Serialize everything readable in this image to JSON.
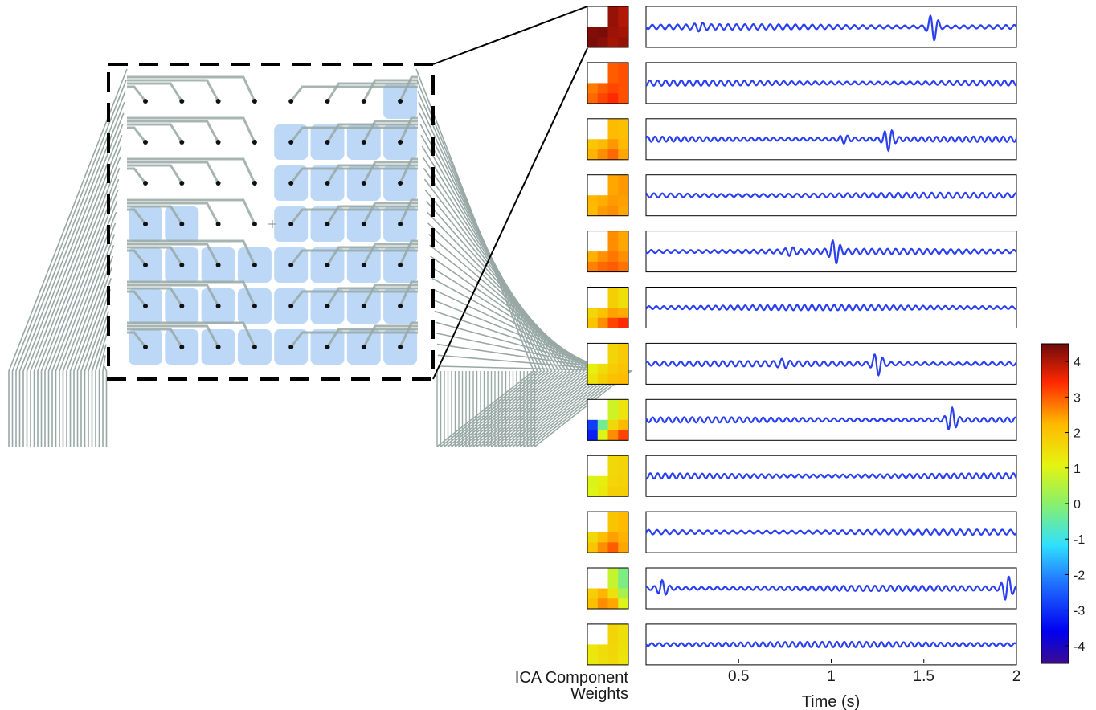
{
  "labels": {
    "weights_line1": "ICA Component",
    "weights_line2": "Weights",
    "x_axis": "Time (s)"
  },
  "x_axis": {
    "range": [
      0,
      2
    ],
    "ticks": [
      0.5,
      1,
      1.5,
      2
    ],
    "tick_labels": [
      "0.5",
      "1",
      "1.5",
      "2"
    ]
  },
  "colorbar": {
    "range": [
      -4.5,
      4.5
    ],
    "ticks": [
      4,
      3,
      2,
      1,
      0,
      -1,
      -2,
      -3,
      -4
    ],
    "tick_labels": [
      "4",
      "3",
      "2",
      "1",
      "0",
      "-1",
      "-2",
      "-3",
      "-4"
    ],
    "colormap": "jet"
  },
  "array": {
    "rows": 7,
    "cols": 8,
    "highlighted_pads": [
      [
        0,
        7
      ],
      [
        1,
        4
      ],
      [
        1,
        5
      ],
      [
        1,
        6
      ],
      [
        1,
        7
      ],
      [
        2,
        4
      ],
      [
        2,
        5
      ],
      [
        2,
        6
      ],
      [
        2,
        7
      ],
      [
        3,
        0
      ],
      [
        3,
        1
      ],
      [
        3,
        4
      ],
      [
        3,
        5
      ],
      [
        3,
        6
      ],
      [
        3,
        7
      ],
      [
        4,
        0
      ],
      [
        4,
        1
      ],
      [
        4,
        2
      ],
      [
        4,
        3
      ],
      [
        4,
        4
      ],
      [
        4,
        5
      ],
      [
        4,
        6
      ],
      [
        4,
        7
      ],
      [
        5,
        0
      ],
      [
        5,
        1
      ],
      [
        5,
        2
      ],
      [
        5,
        3
      ],
      [
        5,
        4
      ],
      [
        5,
        5
      ],
      [
        5,
        6
      ],
      [
        5,
        7
      ],
      [
        6,
        0
      ],
      [
        6,
        1
      ],
      [
        6,
        2
      ],
      [
        6,
        3
      ],
      [
        6,
        4
      ],
      [
        6,
        5
      ],
      [
        6,
        6
      ],
      [
        6,
        7
      ]
    ],
    "pad_color": "#bcd8f6",
    "wire_color": "#98a8a4"
  },
  "components": [
    {
      "weights": [
        [
          4.3,
          4.5,
          4.2,
          4.0
        ],
        [
          4.4,
          4.3,
          4.1,
          4.2
        ]
      ],
      "bursts": [
        [
          0.29,
          0.5
        ],
        [
          1.55,
          3.0
        ]
      ]
    },
    {
      "weights": [
        [
          2.6,
          2.8,
          3.0,
          3.1
        ],
        [
          2.9,
          3.2,
          3.4,
          3.1
        ]
      ],
      "bursts": []
    },
    {
      "weights": [
        [
          1.7,
          1.9,
          2.2,
          2.1
        ],
        [
          2.3,
          2.6,
          2.9,
          2.4
        ]
      ],
      "bursts": [
        [
          1.07,
          0.7
        ],
        [
          1.31,
          2.3
        ]
      ]
    },
    {
      "weights": [
        [
          2.3,
          2.2,
          2.4,
          2.5
        ],
        [
          2.2,
          2.5,
          2.6,
          2.4
        ]
      ],
      "bursts": []
    },
    {
      "weights": [
        [
          2.0,
          2.3,
          2.6,
          2.4
        ],
        [
          2.7,
          2.9,
          3.0,
          2.8
        ]
      ],
      "bursts": [
        [
          0.78,
          0.6
        ],
        [
          1.02,
          2.4
        ]
      ]
    },
    {
      "weights": [
        [
          1.4,
          1.6,
          1.8,
          1.5
        ],
        [
          2.0,
          2.6,
          3.2,
          3.4
        ]
      ],
      "bursts": []
    },
    {
      "weights": [
        [
          1.0,
          1.3,
          1.7,
          1.9
        ],
        [
          1.4,
          1.8,
          2.1,
          2.2
        ]
      ],
      "bursts": [
        [
          0.74,
          0.6
        ],
        [
          1.25,
          2.4
        ]
      ]
    },
    {
      "weights": [
        [
          -2.6,
          -1.4,
          0.8,
          1.4
        ],
        [
          -3.2,
          1.0,
          2.6,
          3.2
        ]
      ],
      "bursts": [
        [
          1.65,
          2.5
        ]
      ]
    },
    {
      "weights": [
        [
          0.9,
          1.1,
          1.6,
          1.7
        ],
        [
          1.0,
          1.3,
          1.8,
          1.8
        ]
      ],
      "bursts": []
    },
    {
      "weights": [
        [
          1.3,
          1.7,
          2.0,
          2.2
        ],
        [
          2.0,
          2.6,
          3.0,
          2.4
        ]
      ],
      "bursts": []
    },
    {
      "weights": [
        [
          1.6,
          2.0,
          0.7,
          -0.2
        ],
        [
          2.1,
          2.6,
          2.4,
          1.0
        ]
      ],
      "bursts": [
        [
          0.09,
          1.6
        ],
        [
          1.95,
          2.6
        ]
      ]
    },
    {
      "weights": [
        [
          1.4,
          1.6,
          1.7,
          1.5
        ],
        [
          1.3,
          1.5,
          1.6,
          1.4
        ]
      ],
      "bursts": []
    }
  ]
}
